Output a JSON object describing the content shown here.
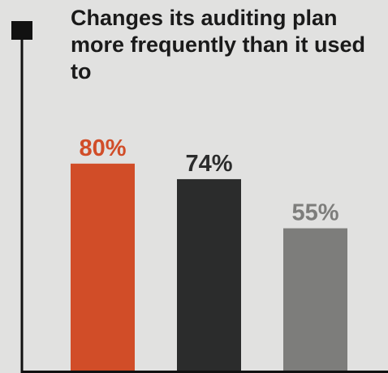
{
  "chart_data": {
    "type": "bar",
    "title": "Changes its auditing plan more frequently than it used to",
    "xlabel": "",
    "ylabel": "",
    "ylim": [
      0,
      100
    ],
    "grid": false,
    "categories": [
      "",
      "",
      ""
    ],
    "values": [
      80,
      74,
      55
    ],
    "value_labels": [
      "80%",
      "74%",
      "55%"
    ],
    "bar_colors": [
      "#d14d28",
      "#2b2c2c",
      "#7d7d7b"
    ],
    "label_colors": [
      "#d14d28",
      "#2b2c2c",
      "#7d7d7b"
    ]
  },
  "colors": {
    "background": "#e1e1e0",
    "axis": "#111111",
    "title": "#1a1a1a"
  }
}
